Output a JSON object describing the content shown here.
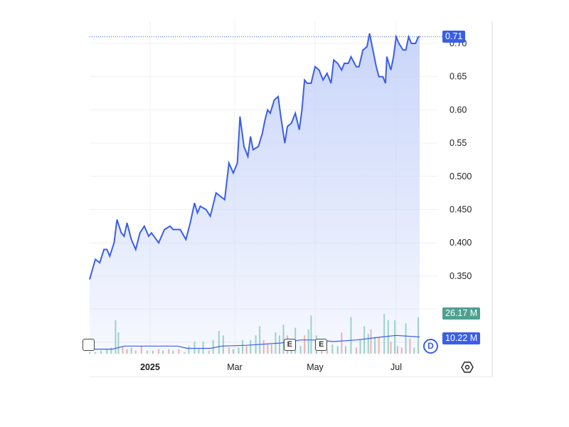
{
  "chart_data": {
    "type": "area",
    "y_axis": {
      "position": "right",
      "ticks": [
        "0.70",
        "0.65",
        "0.60",
        "0.55",
        "0.500",
        "0.450",
        "0.400",
        "0.350"
      ],
      "range": [
        0.33,
        0.72
      ]
    },
    "x_axis": {
      "ticks": [
        {
          "label": "2025",
          "date": "2025-01-01",
          "bold": true
        },
        {
          "label": "Mar",
          "date": "2025-03-01"
        },
        {
          "label": "May",
          "date": "2025-05-01"
        },
        {
          "label": "Jul",
          "date": "2025-07-01"
        }
      ]
    },
    "grid": true,
    "line_color": "#3a5ee8",
    "fill_color": "#c9d5fa",
    "price": [
      [
        "2024-11-20",
        0.345
      ],
      [
        "2024-11-22",
        0.36
      ],
      [
        "2024-11-24",
        0.375
      ],
      [
        "2024-11-27",
        0.37
      ],
      [
        "2024-11-30",
        0.39
      ],
      [
        "2024-12-02",
        0.39
      ],
      [
        "2024-12-04",
        0.38
      ],
      [
        "2024-12-07",
        0.4
      ],
      [
        "2024-12-09",
        0.435
      ],
      [
        "2024-12-12",
        0.415
      ],
      [
        "2024-12-14",
        0.41
      ],
      [
        "2024-12-16",
        0.43
      ],
      [
        "2024-12-19",
        0.405
      ],
      [
        "2024-12-22",
        0.39
      ],
      [
        "2024-12-25",
        0.415
      ],
      [
        "2024-12-28",
        0.425
      ],
      [
        "2024-12-31",
        0.41
      ],
      [
        "2025-01-02",
        0.415
      ],
      [
        "2025-01-07",
        0.4
      ],
      [
        "2025-01-11",
        0.42
      ],
      [
        "2025-01-15",
        0.425
      ],
      [
        "2025-01-17",
        0.42
      ],
      [
        "2025-01-22",
        0.42
      ],
      [
        "2025-01-26",
        0.405
      ],
      [
        "2025-01-29",
        0.43
      ],
      [
        "2025-02-01",
        0.46
      ],
      [
        "2025-02-03",
        0.445
      ],
      [
        "2025-02-05",
        0.455
      ],
      [
        "2025-02-09",
        0.45
      ],
      [
        "2025-02-12",
        0.44
      ],
      [
        "2025-02-16",
        0.475
      ],
      [
        "2025-02-19",
        0.47
      ],
      [
        "2025-02-22",
        0.465
      ],
      [
        "2025-02-25",
        0.52
      ],
      [
        "2025-02-28",
        0.505
      ],
      [
        "2025-03-03",
        0.52
      ],
      [
        "2025-03-05",
        0.59
      ],
      [
        "2025-03-08",
        0.545
      ],
      [
        "2025-03-11",
        0.53
      ],
      [
        "2025-03-13",
        0.56
      ],
      [
        "2025-03-15",
        0.54
      ],
      [
        "2025-03-19",
        0.545
      ],
      [
        "2025-03-22",
        0.565
      ],
      [
        "2025-03-24",
        0.585
      ],
      [
        "2025-03-26",
        0.6
      ],
      [
        "2025-03-28",
        0.595
      ],
      [
        "2025-03-31",
        0.615
      ],
      [
        "2025-04-03",
        0.62
      ],
      [
        "2025-04-05",
        0.59
      ],
      [
        "2025-04-08",
        0.55
      ],
      [
        "2025-04-10",
        0.575
      ],
      [
        "2025-04-13",
        0.58
      ],
      [
        "2025-04-16",
        0.595
      ],
      [
        "2025-04-19",
        0.57
      ],
      [
        "2025-04-21",
        0.6
      ],
      [
        "2025-04-23",
        0.645
      ],
      [
        "2025-04-25",
        0.64
      ],
      [
        "2025-04-28",
        0.64
      ],
      [
        "2025-05-01",
        0.665
      ],
      [
        "2025-05-04",
        0.66
      ],
      [
        "2025-05-07",
        0.645
      ],
      [
        "2025-05-10",
        0.655
      ],
      [
        "2025-05-13",
        0.64
      ],
      [
        "2025-05-15",
        0.675
      ],
      [
        "2025-05-18",
        0.67
      ],
      [
        "2025-05-21",
        0.66
      ],
      [
        "2025-05-23",
        0.67
      ],
      [
        "2025-05-26",
        0.67
      ],
      [
        "2025-05-28",
        0.68
      ],
      [
        "2025-06-01",
        0.665
      ],
      [
        "2025-06-03",
        0.665
      ],
      [
        "2025-06-06",
        0.69
      ],
      [
        "2025-06-09",
        0.695
      ],
      [
        "2025-06-11",
        0.715
      ],
      [
        "2025-06-13",
        0.695
      ],
      [
        "2025-06-16",
        0.665
      ],
      [
        "2025-06-18",
        0.65
      ],
      [
        "2025-06-21",
        0.65
      ],
      [
        "2025-06-23",
        0.64
      ],
      [
        "2025-06-24",
        0.68
      ],
      [
        "2025-06-27",
        0.66
      ],
      [
        "2025-06-29",
        0.68
      ],
      [
        "2025-07-01",
        0.71
      ],
      [
        "2025-07-03",
        0.7
      ],
      [
        "2025-07-06",
        0.69
      ],
      [
        "2025-07-08",
        0.69
      ],
      [
        "2025-07-10",
        0.71
      ],
      [
        "2025-07-12",
        0.7
      ],
      [
        "2025-07-15",
        0.7
      ],
      [
        "2025-07-17",
        0.71
      ],
      [
        "2025-07-18",
        0.71
      ]
    ],
    "volume_unit": "M",
    "volume": [
      [
        "2024-11-20",
        1,
        "up"
      ],
      [
        "2024-11-24",
        1,
        "up"
      ],
      [
        "2024-11-28",
        2,
        "up"
      ],
      [
        "2024-12-02",
        3,
        "up"
      ],
      [
        "2024-12-05",
        4,
        "up"
      ],
      [
        "2024-12-08",
        22,
        "up"
      ],
      [
        "2024-12-10",
        14,
        "up"
      ],
      [
        "2024-12-13",
        5,
        "down"
      ],
      [
        "2024-12-16",
        3,
        "down"
      ],
      [
        "2024-12-19",
        4,
        "up"
      ],
      [
        "2024-12-22",
        2,
        "down"
      ],
      [
        "2024-12-26",
        5,
        "down"
      ],
      [
        "2024-12-30",
        2,
        "up"
      ],
      [
        "2025-01-03",
        2,
        "up"
      ],
      [
        "2025-01-07",
        3,
        "down"
      ],
      [
        "2025-01-10",
        2,
        "up"
      ],
      [
        "2025-01-14",
        3,
        "down"
      ],
      [
        "2025-01-17",
        2,
        "up"
      ],
      [
        "2025-01-21",
        3,
        "down"
      ],
      [
        "2025-01-25",
        1,
        "up"
      ],
      [
        "2025-01-28",
        5,
        "up"
      ],
      [
        "2025-02-01",
        8,
        "up"
      ],
      [
        "2025-02-04",
        3,
        "up"
      ],
      [
        "2025-02-07",
        8,
        "up"
      ],
      [
        "2025-02-11",
        2,
        "down"
      ],
      [
        "2025-02-14",
        9,
        "up"
      ],
      [
        "2025-02-18",
        15,
        "up"
      ],
      [
        "2025-02-21",
        12,
        "up"
      ],
      [
        "2025-02-25",
        4,
        "down"
      ],
      [
        "2025-02-28",
        3,
        "up"
      ],
      [
        "2025-03-04",
        4,
        "up"
      ],
      [
        "2025-03-07",
        9,
        "up"
      ],
      [
        "2025-03-10",
        5,
        "down"
      ],
      [
        "2025-03-13",
        9,
        "up"
      ],
      [
        "2025-03-17",
        12,
        "up"
      ],
      [
        "2025-03-20",
        18,
        "up"
      ],
      [
        "2025-03-23",
        9,
        "down"
      ],
      [
        "2025-03-26",
        6,
        "down"
      ],
      [
        "2025-03-29",
        6,
        "down"
      ],
      [
        "2025-04-01",
        14,
        "up"
      ],
      [
        "2025-04-04",
        12,
        "up"
      ],
      [
        "2025-04-07",
        19,
        "up"
      ],
      [
        "2025-04-10",
        12,
        "down"
      ],
      [
        "2025-04-13",
        9,
        "up"
      ],
      [
        "2025-04-16",
        17,
        "up"
      ],
      [
        "2025-04-20",
        5,
        "up"
      ],
      [
        "2025-04-23",
        12,
        "down"
      ],
      [
        "2025-04-26",
        16,
        "up"
      ],
      [
        "2025-04-28",
        25,
        "up"
      ],
      [
        "2025-05-02",
        12,
        "up"
      ],
      [
        "2025-05-06",
        3,
        "down"
      ],
      [
        "2025-05-10",
        3,
        "down"
      ],
      [
        "2025-05-14",
        6,
        "up"
      ],
      [
        "2025-05-18",
        5,
        "up"
      ],
      [
        "2025-05-21",
        14,
        "down"
      ],
      [
        "2025-05-24",
        5,
        "up"
      ],
      [
        "2025-05-28",
        24,
        "up"
      ],
      [
        "2025-06-01",
        4,
        "down"
      ],
      [
        "2025-06-04",
        9,
        "up"
      ],
      [
        "2025-06-07",
        18,
        "up"
      ],
      [
        "2025-06-10",
        13,
        "up"
      ],
      [
        "2025-06-12",
        16,
        "down"
      ],
      [
        "2025-06-15",
        11,
        "up"
      ],
      [
        "2025-06-18",
        11,
        "down"
      ],
      [
        "2025-06-22",
        26,
        "up"
      ],
      [
        "2025-06-25",
        22,
        "up"
      ],
      [
        "2025-06-27",
        8,
        "down"
      ],
      [
        "2025-06-30",
        22,
        "up"
      ],
      [
        "2025-07-02",
        5,
        "down"
      ],
      [
        "2025-07-05",
        4,
        "down"
      ],
      [
        "2025-07-08",
        20,
        "up"
      ],
      [
        "2025-07-11",
        10,
        "down"
      ],
      [
        "2025-07-14",
        4,
        "up"
      ],
      [
        "2025-07-17",
        24,
        "up"
      ]
    ],
    "volume_ma": [
      [
        "2024-11-20",
        3
      ],
      [
        "2024-12-06",
        3
      ],
      [
        "2024-12-14",
        5
      ],
      [
        "2025-01-20",
        5
      ],
      [
        "2025-01-27",
        3.5
      ],
      [
        "2025-02-12",
        3.5
      ],
      [
        "2025-02-20",
        5
      ],
      [
        "2025-03-10",
        5.5
      ],
      [
        "2025-04-05",
        7
      ],
      [
        "2025-04-20",
        9
      ],
      [
        "2025-05-01",
        9
      ],
      [
        "2025-05-15",
        8
      ],
      [
        "2025-06-01",
        9
      ],
      [
        "2025-06-20",
        11
      ],
      [
        "2025-07-01",
        12
      ],
      [
        "2025-07-18",
        11
      ]
    ],
    "volume_up_color": "#8fd0c0",
    "volume_down_color": "#f3a9a5",
    "last_price_label": "0.71",
    "last_price": 0.71,
    "volume_label": "26.17 M",
    "volume_ma_label": "10.22 M",
    "events": [
      {
        "label": "E",
        "date": "2025-04-12"
      },
      {
        "label": "E",
        "date": "2025-05-06"
      }
    ],
    "interval_badge": "D"
  }
}
